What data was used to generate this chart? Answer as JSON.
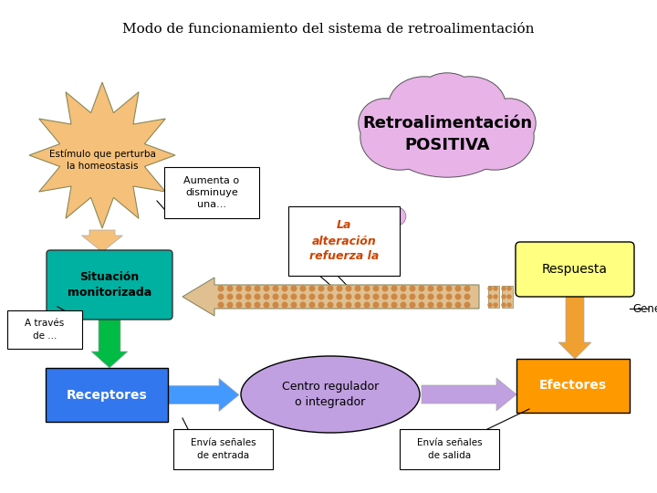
{
  "title": "Modo de funcionamiento del sistema de retroalimentación",
  "background_color": "#ffffff",
  "cloud_color": "#e8b4e8",
  "cloud_text": "Retroalimentación\nPOSITIVA",
  "star_color": "#f5c07a",
  "star_text": "Estímulo que perturba\nla homeostasis",
  "situacion_color": "#00b0a0",
  "situacion_text": "Situación\nmonitorizada",
  "receptores_color": "#3377ee",
  "receptores_text": "Receptores",
  "centro_color": "#c0a0e0",
  "centro_text": "Centro regulador\no integrador",
  "efectores_color": "#ff9900",
  "efectores_text": "Efectores",
  "respuesta_color": "#ffff80",
  "respuesta_text": "Respuesta",
  "aumenta_text": "Aumenta o\ndisminuye\nuna...",
  "alteracion_text": "La\nalteración\nrefuerza la",
  "alteracion_color": "#cc4400",
  "a_traves_text": "A través\nde ...",
  "generan_text": "Generan",
  "envia_entrada_text": "Envía señales\nde entrada",
  "envia_salida_text": "Envía señales\nde salida"
}
